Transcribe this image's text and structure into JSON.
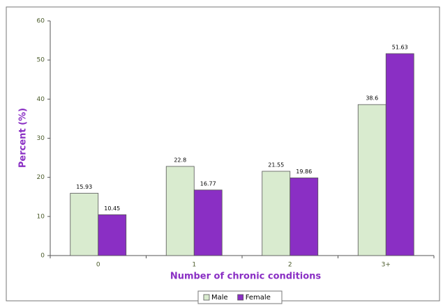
{
  "chart_data": {
    "type": "bar",
    "x_label": "Number of chronic conditions",
    "y_label": "Percent (%)",
    "categories": [
      "0",
      "1",
      "2",
      "3+"
    ],
    "series": [
      {
        "name": "Male",
        "color": "#d9ebcf",
        "values": [
          15.93,
          22.8,
          21.55,
          38.6
        ]
      },
      {
        "name": "Female",
        "color": "#8a2fc4",
        "values": [
          10.45,
          16.77,
          19.86,
          51.63
        ]
      }
    ],
    "ylim": [
      0,
      60
    ],
    "yticks": [
      0,
      10,
      20,
      30,
      40,
      50,
      60
    ],
    "legend": "bottom"
  }
}
